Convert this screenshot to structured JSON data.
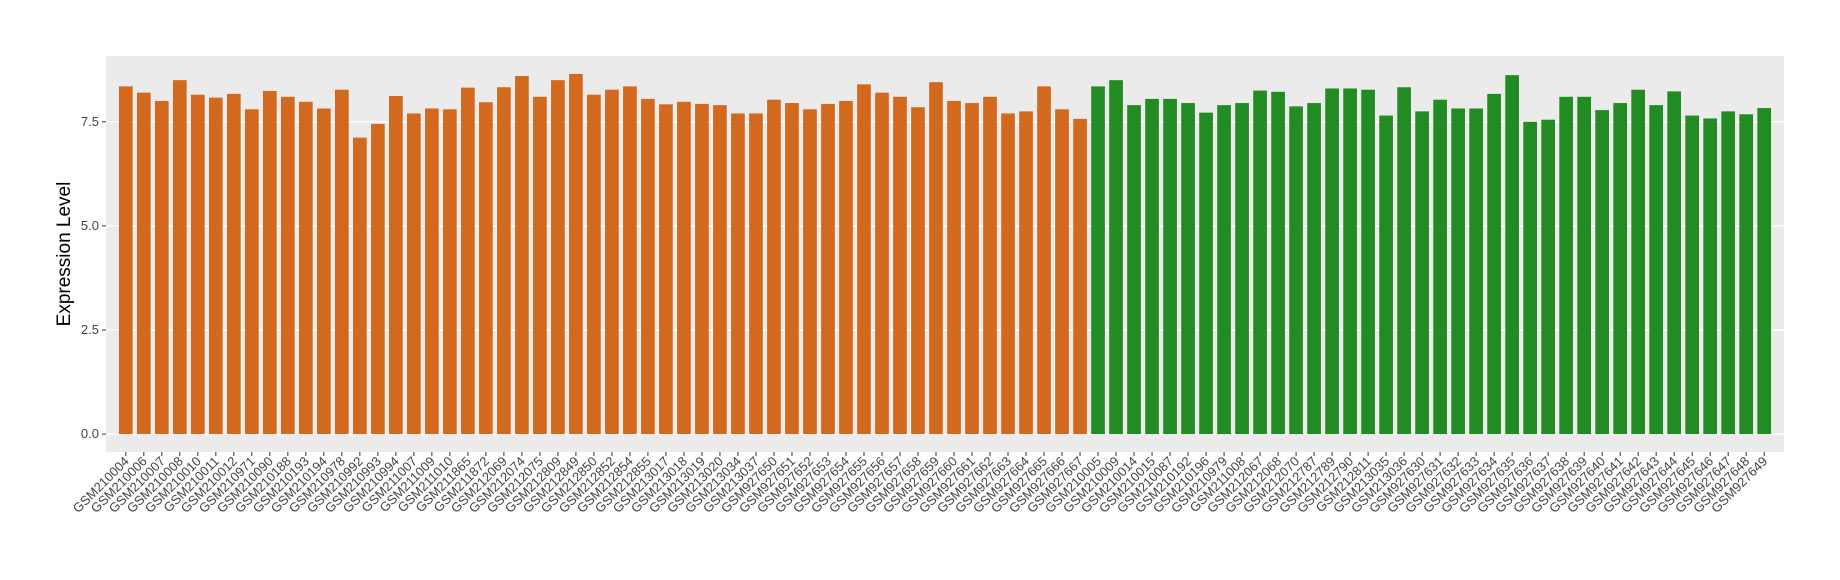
{
  "chart_data": {
    "type": "bar",
    "y_label": "Expression Level",
    "categories": [
      "GSM210004",
      "GSM210006",
      "GSM210007",
      "GSM210008",
      "GSM210010",
      "GSM210011",
      "GSM210012",
      "GSM210971",
      "GSM210090",
      "GSM210188",
      "GSM210193",
      "GSM210194",
      "GSM210978",
      "GSM210992",
      "GSM210993",
      "GSM210994",
      "GSM211007",
      "GSM211009",
      "GSM211010",
      "GSM211865",
      "GSM211872",
      "GSM212069",
      "GSM212074",
      "GSM212075",
      "GSM212809",
      "GSM212849",
      "GSM212850",
      "GSM212852",
      "GSM212854",
      "GSM212855",
      "GSM213017",
      "GSM213018",
      "GSM213019",
      "GSM213020",
      "GSM213034",
      "GSM213037",
      "GSM927650",
      "GSM927651",
      "GSM927652",
      "GSM927653",
      "GSM927654",
      "GSM927655",
      "GSM927656",
      "GSM927657",
      "GSM927658",
      "GSM927659",
      "GSM927660",
      "GSM927661",
      "GSM927662",
      "GSM927663",
      "GSM927664",
      "GSM927665",
      "GSM927666",
      "GSM927667",
      "GSM210005",
      "GSM210009",
      "GSM210014",
      "GSM210015",
      "GSM210087",
      "GSM210192",
      "GSM210196",
      "GSM210979",
      "GSM211008",
      "GSM212067",
      "GSM212068",
      "GSM212070",
      "GSM212787",
      "GSM212789",
      "GSM212790",
      "GSM212811",
      "GSM213035",
      "GSM213036",
      "GSM927630",
      "GSM927631",
      "GSM927632",
      "GSM927633",
      "GSM927634",
      "GSM927635",
      "GSM927636",
      "GSM927637",
      "GSM927638",
      "GSM927639",
      "GSM927640",
      "GSM927641",
      "GSM927642",
      "GSM927643",
      "GSM927644",
      "GSM927645",
      "GSM927646",
      "GSM927647",
      "GSM927648",
      "GSM927649"
    ],
    "values": [
      8.35,
      8.2,
      8.0,
      8.5,
      8.15,
      8.08,
      8.17,
      7.8,
      8.24,
      8.1,
      7.98,
      7.82,
      8.27,
      7.12,
      7.45,
      8.12,
      7.7,
      7.82,
      7.8,
      8.32,
      7.97,
      8.33,
      8.6,
      8.1,
      8.5,
      8.65,
      8.15,
      8.27,
      8.35,
      8.05,
      7.92,
      7.98,
      7.93,
      7.9,
      7.7,
      7.7,
      8.03,
      7.95,
      7.8,
      7.93,
      8.0,
      8.4,
      8.2,
      8.1,
      7.85,
      8.45,
      8.0,
      7.95,
      8.1,
      7.7,
      7.75,
      8.35,
      7.8,
      7.57,
      8.35,
      8.5,
      7.9,
      8.05,
      8.05,
      7.95,
      7.72,
      7.9,
      7.95,
      8.25,
      8.22,
      7.87,
      7.95,
      8.3,
      8.3,
      8.27,
      7.65,
      8.33,
      7.75,
      8.03,
      7.82,
      7.82,
      8.17,
      8.62,
      7.5,
      7.55,
      8.1,
      8.1,
      7.78,
      7.95,
      8.27,
      7.9,
      8.23,
      7.65,
      7.58,
      7.75,
      7.68,
      7.83
    ],
    "colors": [
      "#d2691e",
      "#d2691e",
      "#d2691e",
      "#d2691e",
      "#d2691e",
      "#d2691e",
      "#d2691e",
      "#d2691e",
      "#d2691e",
      "#d2691e",
      "#d2691e",
      "#d2691e",
      "#d2691e",
      "#d2691e",
      "#d2691e",
      "#d2691e",
      "#d2691e",
      "#d2691e",
      "#d2691e",
      "#d2691e",
      "#d2691e",
      "#d2691e",
      "#d2691e",
      "#d2691e",
      "#d2691e",
      "#d2691e",
      "#d2691e",
      "#d2691e",
      "#d2691e",
      "#d2691e",
      "#d2691e",
      "#d2691e",
      "#d2691e",
      "#d2691e",
      "#d2691e",
      "#d2691e",
      "#d2691e",
      "#d2691e",
      "#d2691e",
      "#d2691e",
      "#d2691e",
      "#d2691e",
      "#d2691e",
      "#d2691e",
      "#d2691e",
      "#d2691e",
      "#d2691e",
      "#d2691e",
      "#d2691e",
      "#d2691e",
      "#d2691e",
      "#d2691e",
      "#d2691e",
      "#d2691e",
      "#228b22",
      "#228b22",
      "#228b22",
      "#228b22",
      "#228b22",
      "#228b22",
      "#228b22",
      "#228b22",
      "#228b22",
      "#228b22",
      "#228b22",
      "#228b22",
      "#228b22",
      "#228b22",
      "#228b22",
      "#228b22",
      "#228b22",
      "#228b22",
      "#228b22",
      "#228b22",
      "#228b22",
      "#228b22",
      "#228b22",
      "#228b22",
      "#228b22",
      "#228b22",
      "#228b22",
      "#228b22",
      "#228b22",
      "#228b22",
      "#228b22",
      "#228b22",
      "#228b22",
      "#228b22",
      "#228b22",
      "#228b22",
      "#228b22",
      "#228b22"
    ],
    "ylim": [
      -0.43,
      9.08
    ],
    "yticks": [
      {
        "value": 0,
        "label": "0.0"
      },
      2.5,
      {
        "value": 5,
        "label": "5.0"
      },
      7.5
    ],
    "grid": true
  }
}
